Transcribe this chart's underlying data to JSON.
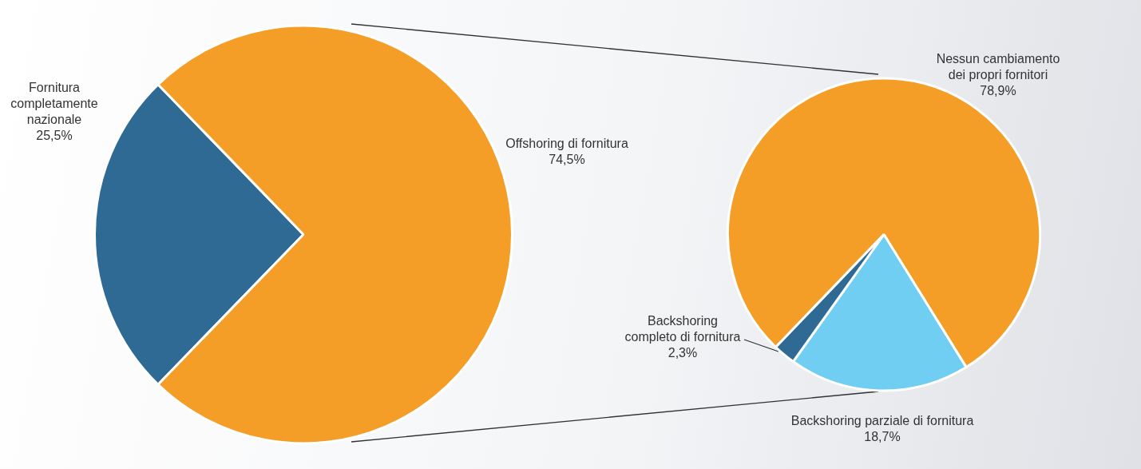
{
  "chart_data": [
    {
      "type": "pie",
      "categories": [
        "Fornitura completamente nazionale",
        "Offshoring di fornitura"
      ],
      "values": [
        25.5,
        74.5
      ],
      "colors": [
        "#2e6a93",
        "#f59e27"
      ],
      "value_labels": [
        "25,5%",
        "74,5%"
      ],
      "legend": false
    },
    {
      "type": "pie",
      "categories": [
        "Nessun cambiamento dei propri fornitori",
        "Backshoring parziale di fornitura",
        "Backshoring completo di fornitura"
      ],
      "values": [
        78.9,
        18.7,
        2.3
      ],
      "colors": [
        "#f59e27",
        "#70cef3",
        "#2e6a93"
      ],
      "value_labels": [
        "78,9%",
        "18,7%",
        "2,3%"
      ],
      "legend": false
    }
  ]
}
